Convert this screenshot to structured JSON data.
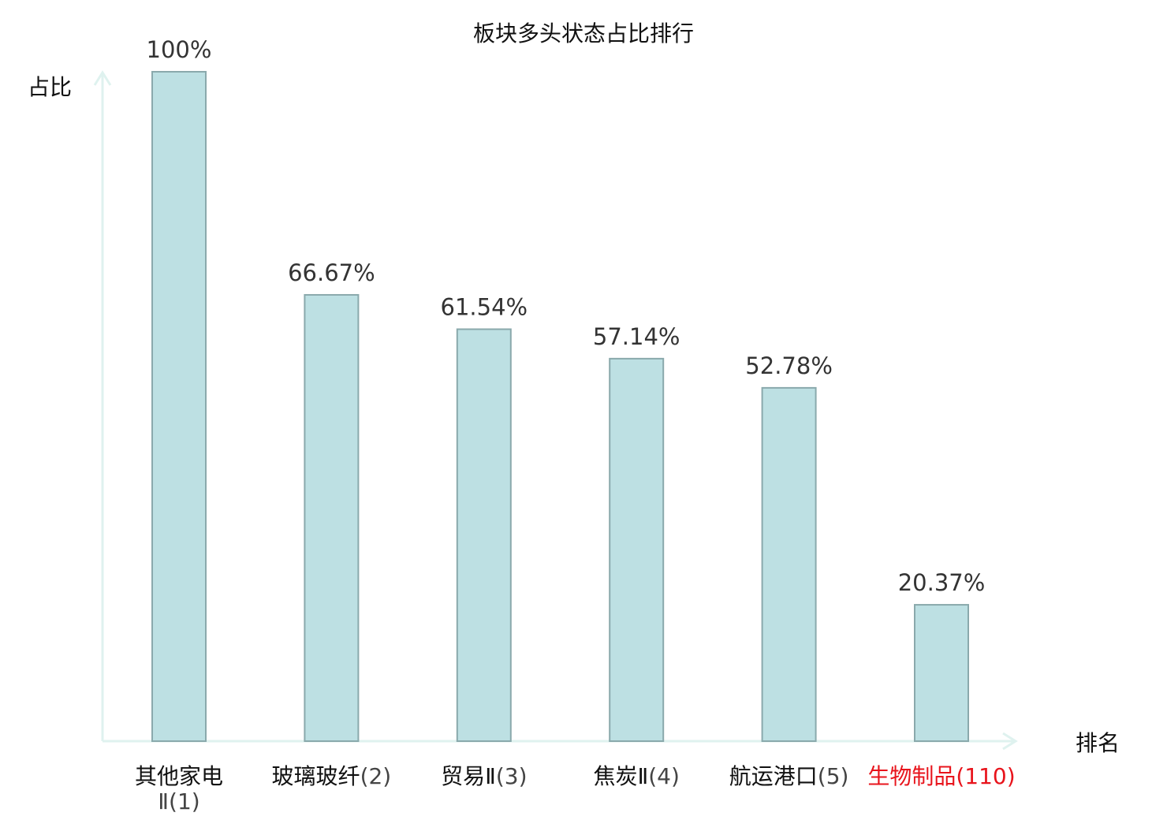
{
  "chart_data": {
    "type": "bar",
    "title": "板块多头状态占比排行",
    "ylabel": "占比",
    "xlabel": "排名",
    "ylim": [
      0,
      100
    ],
    "grid": false,
    "legend": "none",
    "categories": [
      {
        "name": "其他家电Ⅱ",
        "rank": "(1)",
        "highlight": false
      },
      {
        "name": "玻璃玻纤",
        "rank": "(2)",
        "highlight": false
      },
      {
        "name": "贸易Ⅱ",
        "rank": "(3)",
        "highlight": false
      },
      {
        "name": "焦炭Ⅱ",
        "rank": "(4)",
        "highlight": false
      },
      {
        "name": "航运港口",
        "rank": "(5)",
        "highlight": false
      },
      {
        "name": "生物制品",
        "rank": "(110)",
        "highlight": true
      }
    ],
    "values": [
      100,
      66.67,
      61.54,
      57.14,
      52.78,
      20.37
    ],
    "value_labels": [
      "100%",
      "66.67%",
      "61.54%",
      "57.14%",
      "52.78%",
      "20.37%"
    ],
    "colors": {
      "bar_fill": "#bde0e3",
      "bar_stroke": "#8aa9ac",
      "axis": "#dff2ef",
      "highlight_text": "#e8141c"
    }
  }
}
